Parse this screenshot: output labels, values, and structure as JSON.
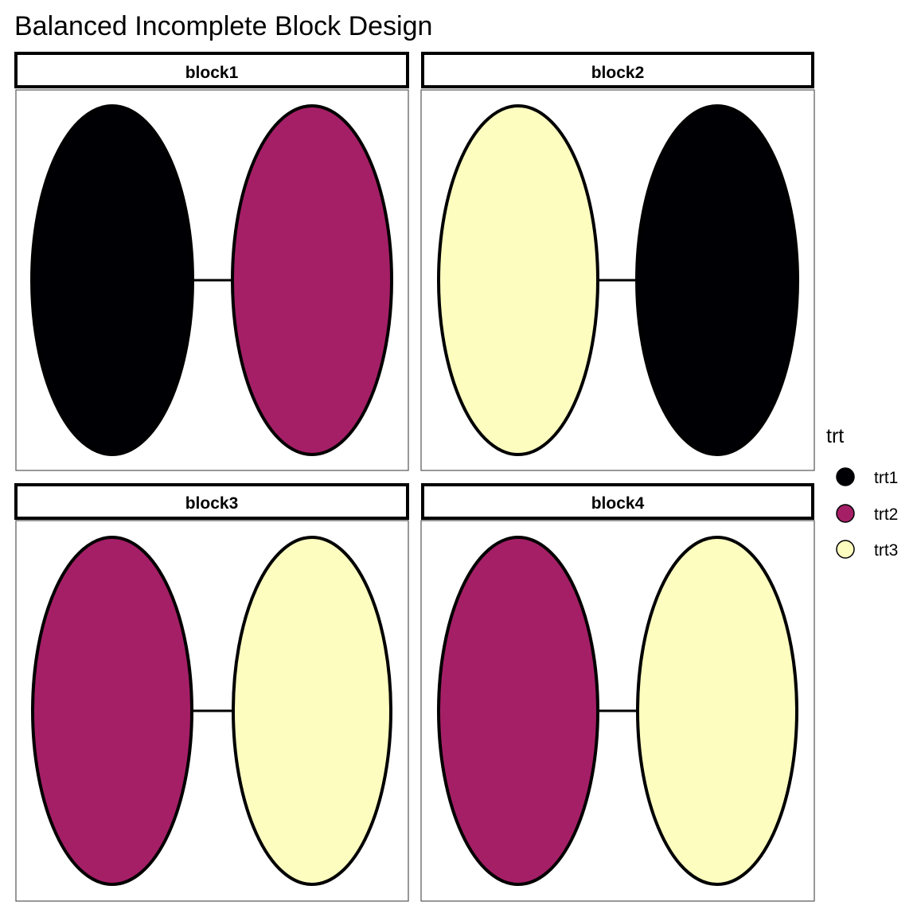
{
  "title": "Balanced Incomplete Block Design",
  "legend": {
    "title": "trt",
    "items": [
      {
        "label": "trt1",
        "color": "#000004"
      },
      {
        "label": "trt2",
        "color": "#a51f67"
      },
      {
        "label": "trt3",
        "color": "#fcfdbf"
      }
    ]
  },
  "blocks": [
    {
      "label": "block1",
      "units": [
        "trt1",
        "trt2"
      ]
    },
    {
      "label": "block2",
      "units": [
        "trt3",
        "trt1"
      ]
    },
    {
      "label": "block3",
      "units": [
        "trt2",
        "trt3"
      ]
    },
    {
      "label": "block4",
      "units": [
        "trt2",
        "trt3"
      ]
    }
  ]
}
